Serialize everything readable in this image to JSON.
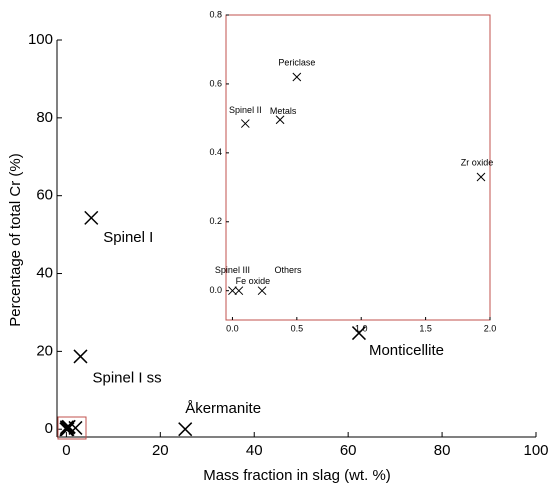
{
  "chart_data": [
    {
      "type": "scatter",
      "x_label": "Mass fraction in slag (wt. %)",
      "y_label": "Percentage of total Cr (%)",
      "xlim": [
        -2,
        100
      ],
      "ylim": [
        -2,
        100
      ],
      "xticks": [
        0,
        20,
        40,
        60,
        80,
        100
      ],
      "yticks": [
        0,
        20,
        40,
        60,
        80,
        100
      ],
      "color": "#000000",
      "labels": [
        "Spinel I",
        "Spinel I ss",
        "Åkermanite",
        "Monticellite"
      ],
      "x": [
        5.3,
        3,
        25.3,
        62.3
      ],
      "y": [
        54.3,
        18.7,
        0,
        24.7
      ]
    },
    {
      "type": "scatter",
      "xlim": [
        -0.05,
        2.0
      ],
      "ylim": [
        -0.085,
        0.8
      ],
      "xticks": [
        {
          "value": 0,
          "label": "0.0"
        },
        0.5,
        {
          "value": 1,
          "label": "1.0"
        },
        1.5,
        {
          "value": 2,
          "label": "2.0"
        }
      ],
      "yticks": [
        {
          "value": 0,
          "label": "0.0"
        },
        0.2,
        0.4,
        0.6,
        0.8
      ],
      "color": "#000000",
      "border_color": "#c0504d",
      "labels": [
        "Periclase",
        "Spinel II",
        "Metals",
        "Zr oxide",
        "Spinel III",
        "Fe oxide",
        "Others"
      ],
      "x": [
        0.5,
        0.1,
        0.37,
        1.93,
        0,
        0.05,
        0.23
      ],
      "y": [
        0.62,
        0.485,
        0.496,
        0.33,
        0,
        0,
        0
      ]
    }
  ]
}
